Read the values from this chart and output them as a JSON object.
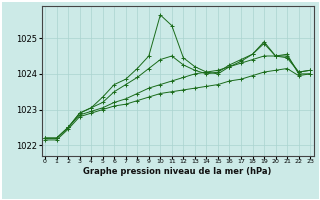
{
  "title": "Graphe pression niveau de la mer (hPa)",
  "background_color": "#cceae7",
  "grid_color": "#aad4d0",
  "line_color": "#1a6b1a",
  "ylim": [
    1021.7,
    1025.9
  ],
  "xlim": [
    -0.3,
    23.3
  ],
  "yticks": [
    1022,
    1023,
    1024,
    1025
  ],
  "xticks": [
    0,
    1,
    2,
    3,
    4,
    5,
    6,
    7,
    8,
    9,
    10,
    11,
    12,
    13,
    14,
    15,
    16,
    17,
    18,
    19,
    20,
    21,
    22,
    23
  ],
  "series": [
    [
      1022.2,
      1022.2,
      1022.5,
      1022.9,
      1023.05,
      1023.35,
      1023.7,
      1023.85,
      1024.15,
      1024.5,
      1025.65,
      1025.35,
      1024.45,
      1024.2,
      1024.05,
      1024.0,
      1024.2,
      1024.35,
      1024.55,
      1024.9,
      1024.5,
      1024.5,
      1024.05,
      1024.1
    ],
    [
      1022.2,
      1022.2,
      1022.5,
      1022.9,
      1023.05,
      1023.2,
      1023.5,
      1023.7,
      1023.9,
      1024.15,
      1024.4,
      1024.5,
      1024.25,
      1024.1,
      1024.0,
      1024.05,
      1024.25,
      1024.4,
      1024.55,
      1024.85,
      1024.5,
      1024.45,
      1024.05,
      1024.1
    ],
    [
      1022.2,
      1022.2,
      1022.5,
      1022.85,
      1022.95,
      1023.05,
      1023.2,
      1023.3,
      1023.45,
      1023.6,
      1023.7,
      1023.8,
      1023.9,
      1024.0,
      1024.05,
      1024.1,
      1024.2,
      1024.3,
      1024.4,
      1024.5,
      1024.5,
      1024.55,
      1024.0,
      1024.0
    ],
    [
      1022.15,
      1022.15,
      1022.45,
      1022.8,
      1022.9,
      1023.0,
      1023.1,
      1023.15,
      1023.25,
      1023.35,
      1023.45,
      1023.5,
      1023.55,
      1023.6,
      1023.65,
      1023.7,
      1023.8,
      1023.85,
      1023.95,
      1024.05,
      1024.1,
      1024.15,
      1023.95,
      1024.0
    ]
  ]
}
